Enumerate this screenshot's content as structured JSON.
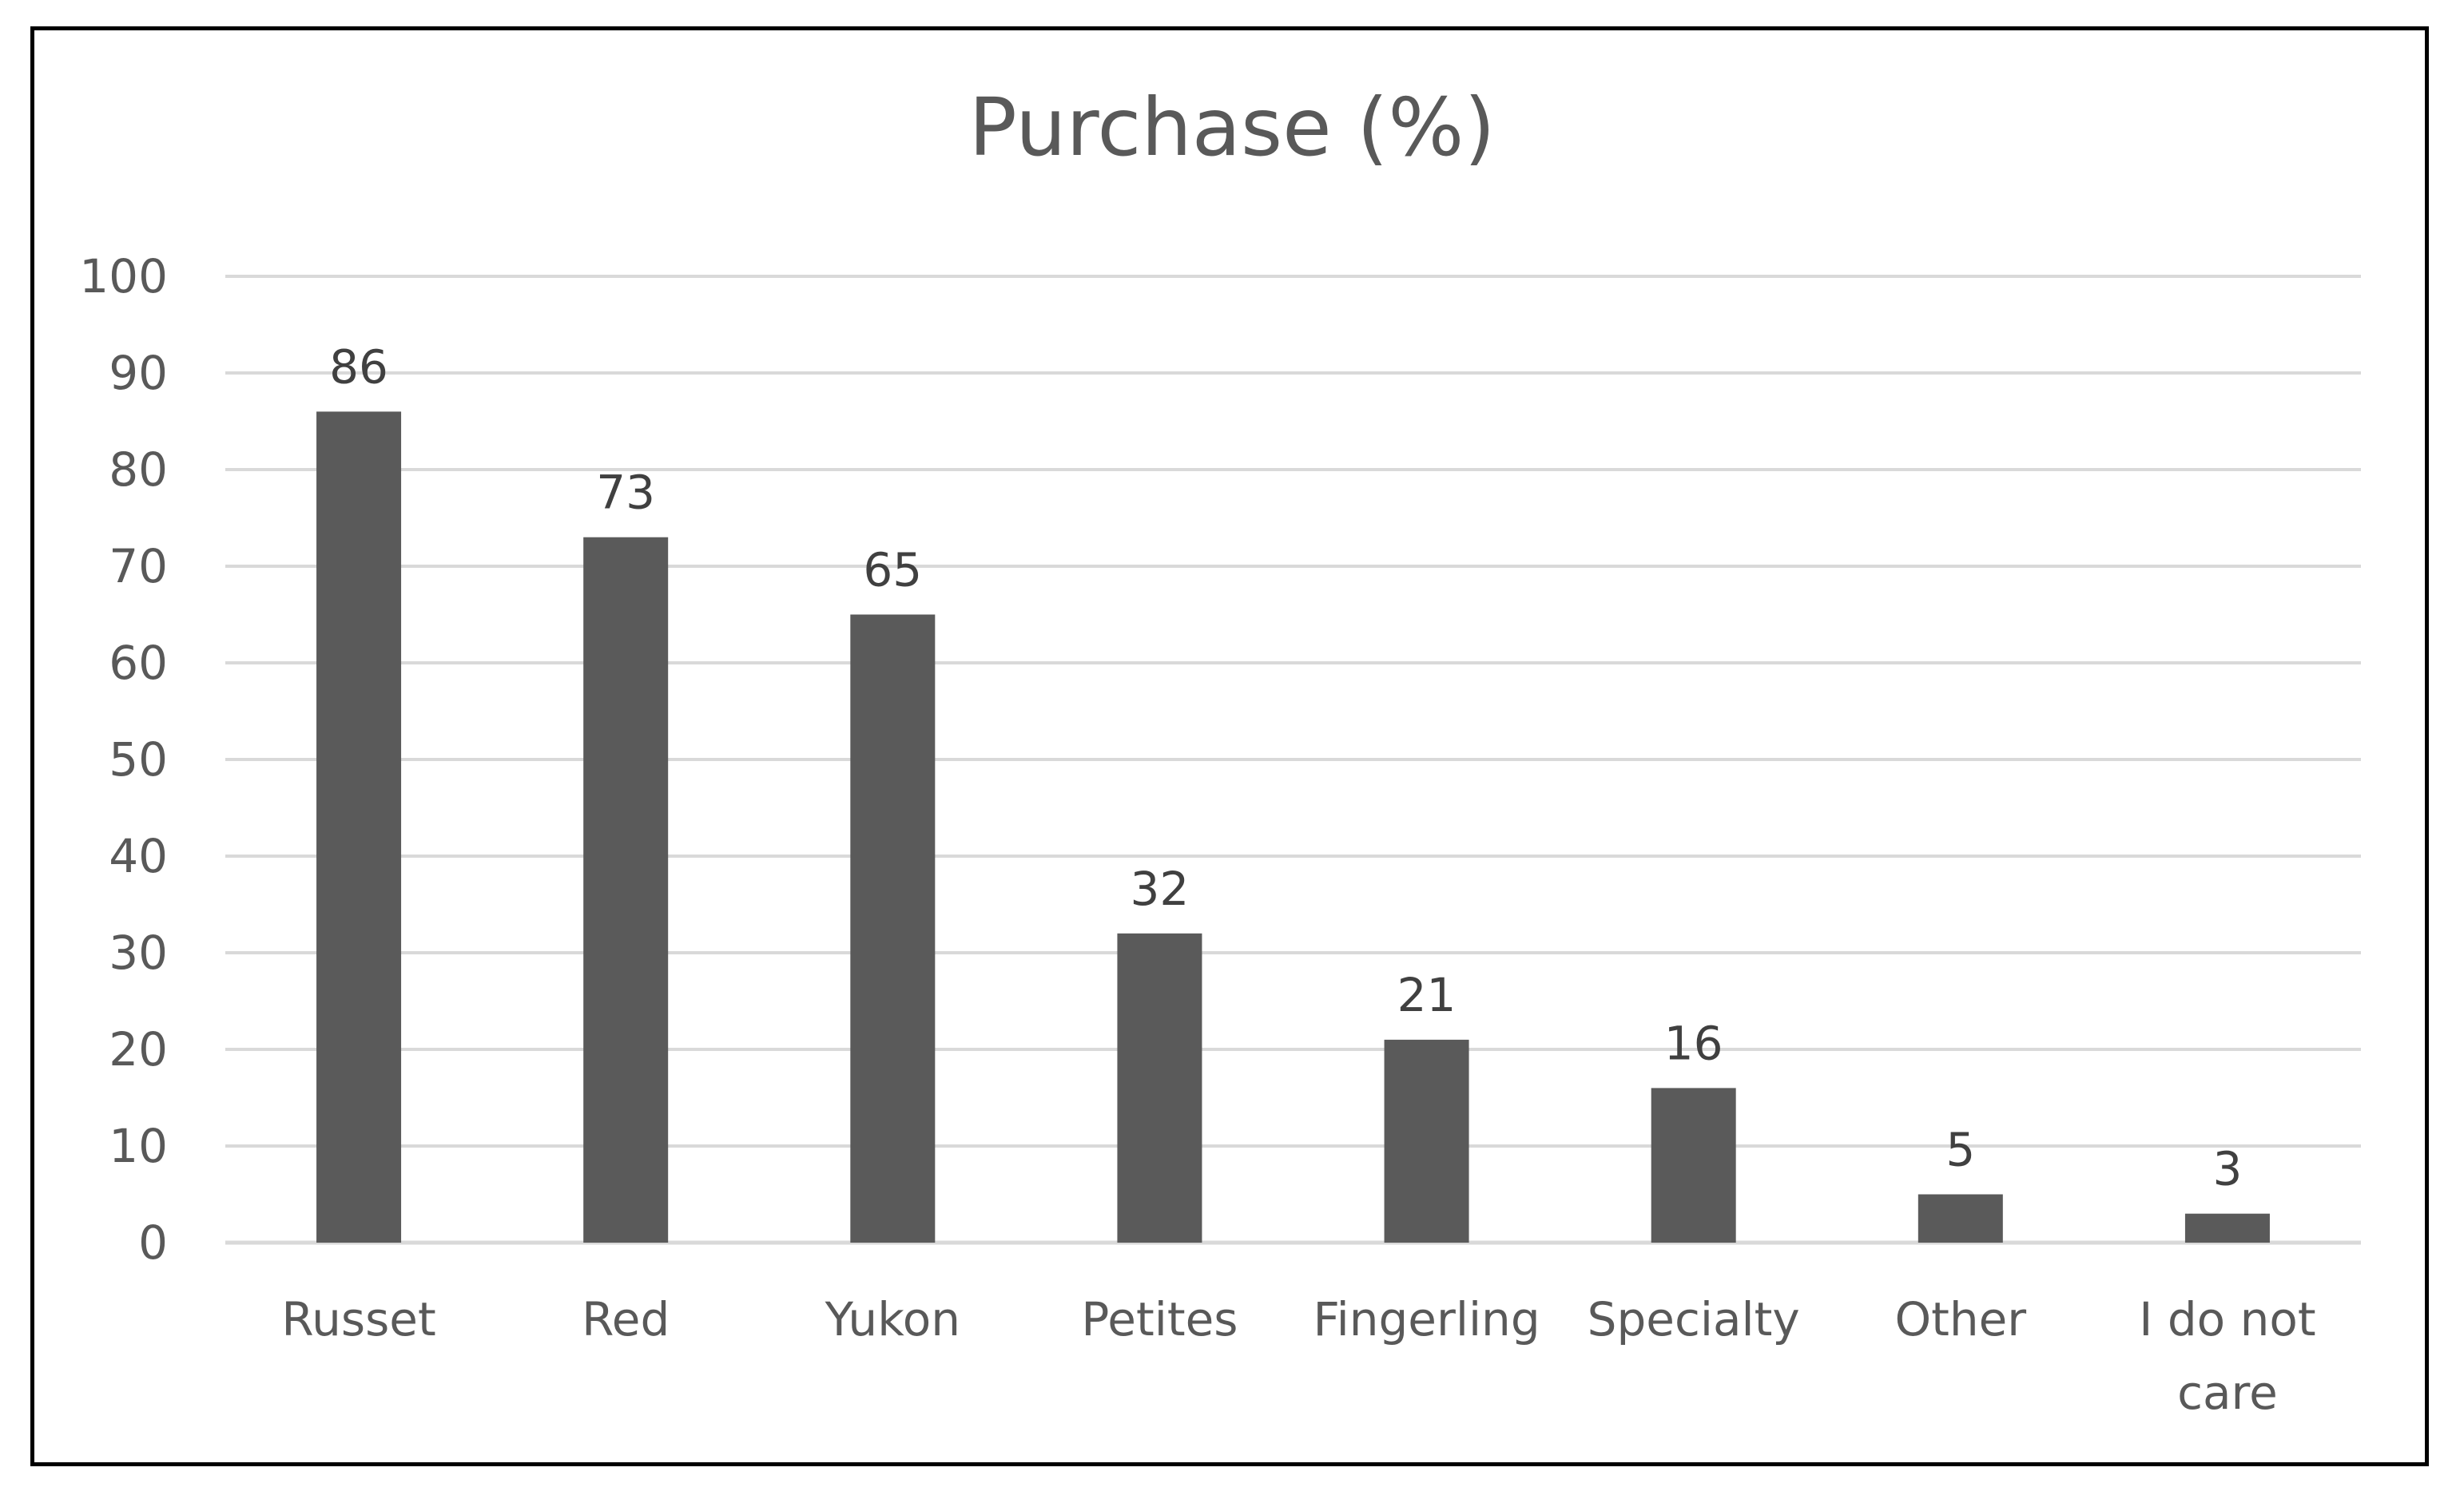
{
  "chart_data": {
    "type": "bar",
    "title": "Purchase (%)",
    "categories": [
      "Russet",
      "Red",
      "Yukon",
      "Petites",
      "Fingerling",
      "Specialty",
      "Other",
      "I do not care"
    ],
    "values": [
      86,
      73,
      65,
      32,
      21,
      16,
      5,
      3
    ],
    "data_labels": [
      "86",
      "73",
      "65",
      "32",
      "21",
      "16",
      "5",
      "3"
    ],
    "yticks": [
      0,
      10,
      20,
      30,
      40,
      50,
      60,
      70,
      80,
      90,
      100
    ],
    "ylim": [
      0,
      100
    ],
    "xlabel": "",
    "ylabel": "",
    "grid": true,
    "legend": "none",
    "bar_color": "#5a5a5a",
    "grid_color": "#d9d9d9"
  }
}
